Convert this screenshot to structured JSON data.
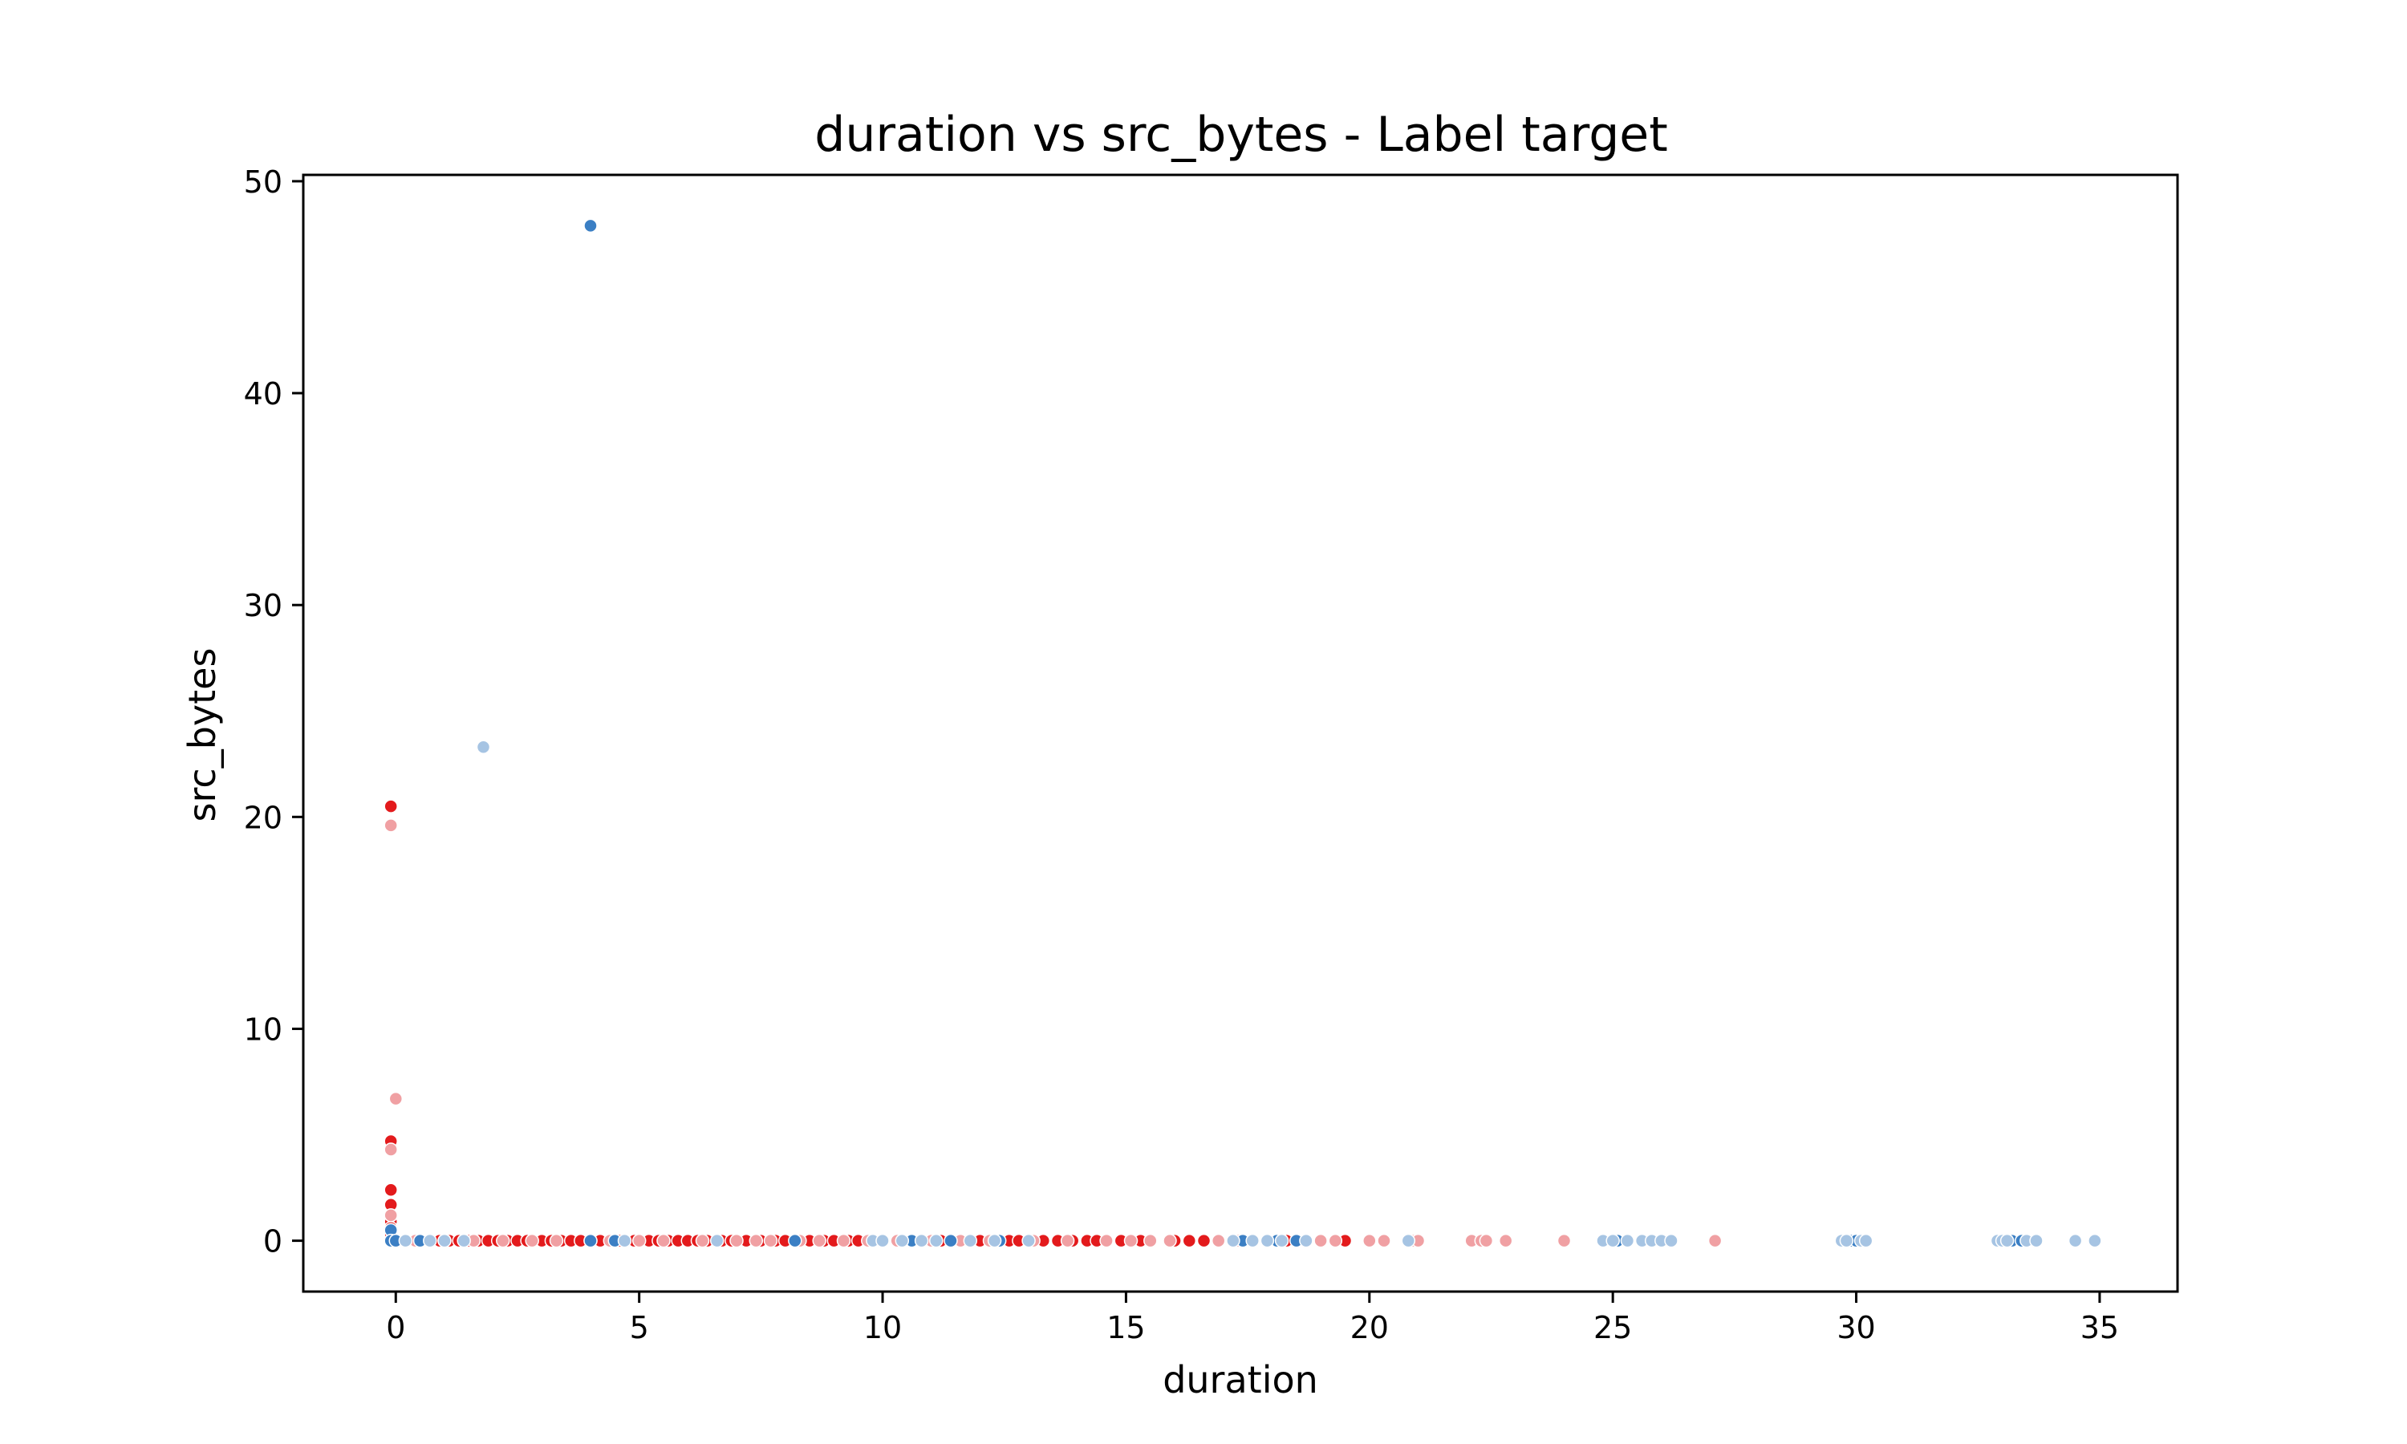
{
  "chart_data": {
    "type": "scatter",
    "title": "duration vs src_bytes - Label target",
    "xlabel": "duration",
    "ylabel": "src_bytes",
    "xlim": [
      -1.9,
      36.6
    ],
    "ylim": [
      -2.4,
      50.3
    ],
    "xticks": [
      0,
      5,
      10,
      15,
      20,
      25,
      30,
      35
    ],
    "yticks": [
      0,
      10,
      20,
      30,
      40,
      50
    ],
    "grid": false,
    "legend": "none",
    "colors": {
      "red_strong": "#e31a1c",
      "red_light": "#f0a0a3",
      "blue_strong": "#3b7fc4",
      "blue_light": "#a6c4e3"
    },
    "series": [
      {
        "color": "#e31a1c",
        "points": [
          [
            -0.1,
            20.5
          ],
          [
            -0.1,
            4.7
          ],
          [
            -0.1,
            2.4
          ],
          [
            -0.1,
            1.7
          ],
          [
            -0.1,
            0.9
          ],
          [
            -0.1,
            0.6
          ],
          [
            -0.1,
            0.3
          ],
          [
            -0.1,
            0
          ],
          [
            0.9,
            0
          ],
          [
            1.1,
            0
          ],
          [
            1.3,
            0
          ],
          [
            1.5,
            0
          ],
          [
            1.7,
            0
          ],
          [
            1.9,
            0
          ],
          [
            2.1,
            0
          ],
          [
            2.3,
            0
          ],
          [
            2.5,
            0
          ],
          [
            2.7,
            0
          ],
          [
            3.0,
            0
          ],
          [
            3.2,
            0
          ],
          [
            3.4,
            0
          ],
          [
            3.6,
            0
          ],
          [
            3.8,
            0
          ],
          [
            4.2,
            0
          ],
          [
            4.6,
            0
          ],
          [
            4.9,
            0
          ],
          [
            5.2,
            0
          ],
          [
            5.4,
            0
          ],
          [
            5.6,
            0
          ],
          [
            5.8,
            0
          ],
          [
            6.0,
            0
          ],
          [
            6.2,
            0
          ],
          [
            6.4,
            0
          ],
          [
            6.7,
            0
          ],
          [
            6.9,
            0
          ],
          [
            7.2,
            0
          ],
          [
            7.5,
            0
          ],
          [
            7.8,
            0
          ],
          [
            8.0,
            0
          ],
          [
            8.5,
            0
          ],
          [
            8.8,
            0
          ],
          [
            9.0,
            0
          ],
          [
            9.3,
            0
          ],
          [
            9.5,
            0
          ],
          [
            11.2,
            0
          ],
          [
            12.0,
            0
          ],
          [
            12.6,
            0
          ],
          [
            12.8,
            0
          ],
          [
            13.3,
            0
          ],
          [
            13.6,
            0
          ],
          [
            13.9,
            0
          ],
          [
            14.2,
            0
          ],
          [
            14.4,
            0
          ],
          [
            14.9,
            0
          ],
          [
            15.3,
            0
          ],
          [
            16.0,
            0
          ],
          [
            16.3,
            0
          ],
          [
            16.6,
            0
          ],
          [
            18.3,
            0
          ],
          [
            19.5,
            0
          ]
        ]
      },
      {
        "color": "#f0a0a3",
        "points": [
          [
            -0.1,
            19.6
          ],
          [
            0.0,
            6.7
          ],
          [
            -0.1,
            4.3
          ],
          [
            -0.1,
            1.2
          ],
          [
            0.4,
            0
          ],
          [
            1.0,
            0
          ],
          [
            1.6,
            0
          ],
          [
            2.2,
            0
          ],
          [
            2.8,
            0
          ],
          [
            3.3,
            0
          ],
          [
            4.0,
            0
          ],
          [
            4.4,
            0
          ],
          [
            5.0,
            0
          ],
          [
            5.5,
            0
          ],
          [
            6.3,
            0
          ],
          [
            7.0,
            0
          ],
          [
            7.4,
            0
          ],
          [
            7.7,
            0
          ],
          [
            8.3,
            0
          ],
          [
            8.7,
            0
          ],
          [
            9.2,
            0
          ],
          [
            9.7,
            0
          ],
          [
            10.3,
            0
          ],
          [
            11.0,
            0
          ],
          [
            11.6,
            0
          ],
          [
            12.2,
            0
          ],
          [
            13.1,
            0
          ],
          [
            13.8,
            0
          ],
          [
            14.6,
            0
          ],
          [
            15.1,
            0
          ],
          [
            15.5,
            0
          ],
          [
            15.9,
            0
          ],
          [
            16.9,
            0
          ],
          [
            17.3,
            0
          ],
          [
            19.0,
            0
          ],
          [
            19.3,
            0
          ],
          [
            20.0,
            0
          ],
          [
            20.3,
            0
          ],
          [
            20.9,
            0
          ],
          [
            21.0,
            0
          ],
          [
            22.1,
            0
          ],
          [
            22.3,
            0
          ],
          [
            22.4,
            0
          ],
          [
            22.8,
            0
          ],
          [
            24.0,
            0
          ],
          [
            27.1,
            0
          ]
        ]
      },
      {
        "color": "#3b7fc4",
        "points": [
          [
            4.0,
            47.9
          ],
          [
            -0.1,
            0.5
          ],
          [
            -0.1,
            0
          ],
          [
            0.0,
            0
          ],
          [
            0.5,
            0
          ],
          [
            4.0,
            0
          ],
          [
            4.5,
            0
          ],
          [
            8.2,
            0
          ],
          [
            10.6,
            0
          ],
          [
            11.4,
            0
          ],
          [
            12.4,
            0
          ],
          [
            17.4,
            0
          ],
          [
            18.1,
            0
          ],
          [
            18.5,
            0
          ],
          [
            25.1,
            0
          ],
          [
            29.9,
            0
          ],
          [
            30.0,
            0
          ],
          [
            33.2,
            0
          ],
          [
            33.4,
            0
          ]
        ]
      },
      {
        "color": "#a6c4e3",
        "points": [
          [
            1.8,
            23.3
          ],
          [
            0.2,
            0
          ],
          [
            0.7,
            0
          ],
          [
            1.0,
            0
          ],
          [
            1.4,
            0
          ],
          [
            4.7,
            0
          ],
          [
            6.6,
            0
          ],
          [
            9.8,
            0
          ],
          [
            10.0,
            0
          ],
          [
            10.4,
            0
          ],
          [
            10.8,
            0
          ],
          [
            11.1,
            0
          ],
          [
            11.8,
            0
          ],
          [
            12.3,
            0
          ],
          [
            13.0,
            0
          ],
          [
            17.2,
            0
          ],
          [
            17.6,
            0
          ],
          [
            17.9,
            0
          ],
          [
            18.2,
            0
          ],
          [
            18.7,
            0
          ],
          [
            20.8,
            0
          ],
          [
            24.8,
            0
          ],
          [
            25.0,
            0
          ],
          [
            25.3,
            0
          ],
          [
            25.6,
            0
          ],
          [
            25.8,
            0
          ],
          [
            26.0,
            0
          ],
          [
            26.2,
            0
          ],
          [
            29.7,
            0
          ],
          [
            29.8,
            0
          ],
          [
            30.1,
            0
          ],
          [
            30.2,
            0
          ],
          [
            32.9,
            0
          ],
          [
            33.0,
            0
          ],
          [
            33.1,
            0
          ],
          [
            33.5,
            0
          ],
          [
            33.7,
            0
          ],
          [
            34.5,
            0
          ],
          [
            34.9,
            0
          ]
        ]
      }
    ]
  }
}
